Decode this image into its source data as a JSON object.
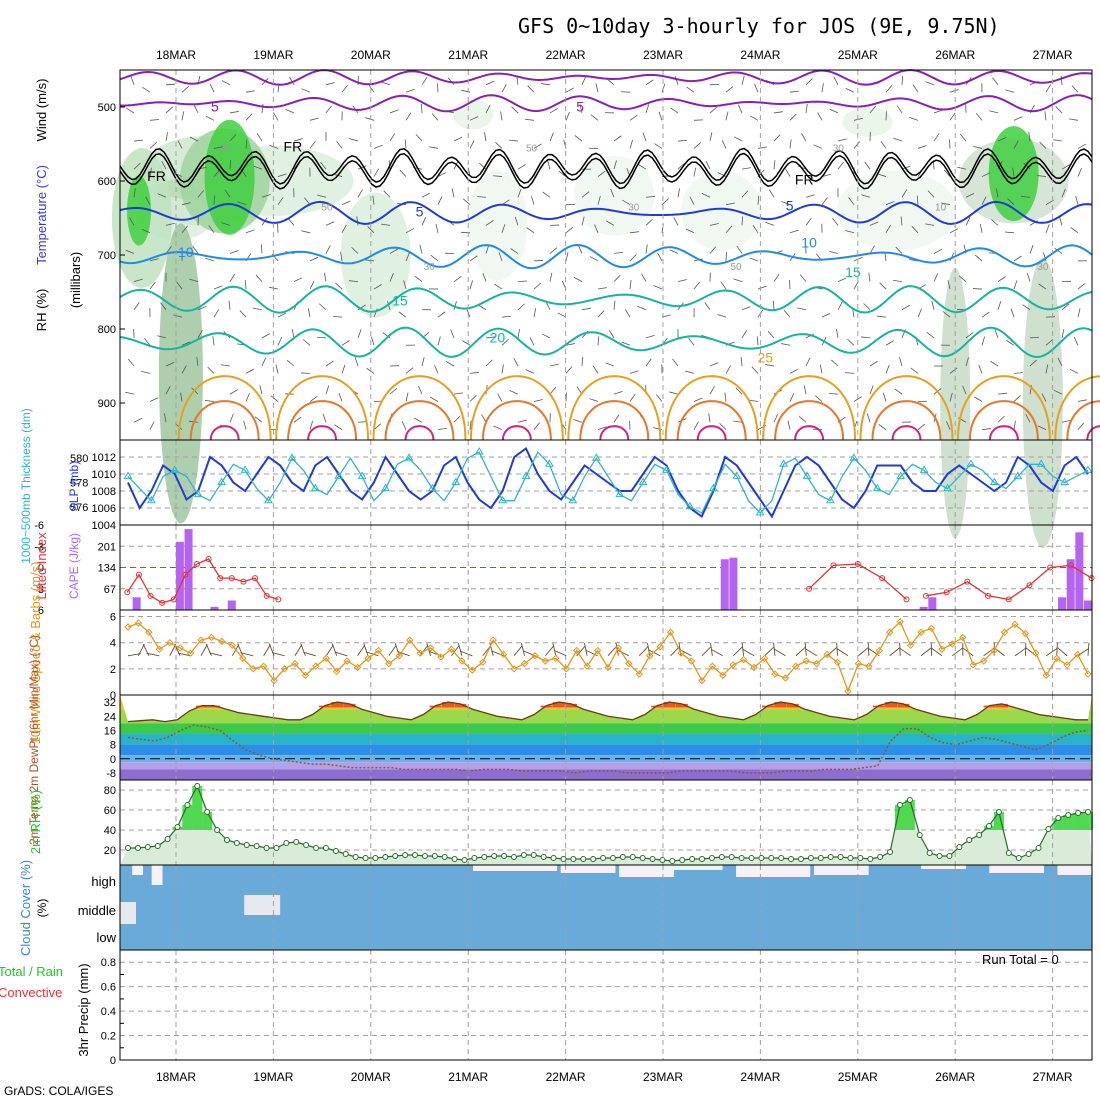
{
  "title": "GFS 0~10day 3-hourly for JOS (9E, 9.75N)",
  "credit": "GrADS: COLA/IGES",
  "run_total_label": "Run Total = 0",
  "colors": {
    "purple": "#8a1fb4",
    "black": "#000000",
    "blue": "#1e3cd2",
    "lightblue": "#1e8ce6",
    "teal": "#16b4a0",
    "orange": "#e6a020",
    "darkorange": "#e67828",
    "magenta": "#dc1e82",
    "cyan": "#32b4c8",
    "gridgray": "#a0a0a0",
    "cape": "#b464f0",
    "li": "#e63232",
    "wind": "#e6961e",
    "rh": "#22c822",
    "cloud": "#6aaad8"
  },
  "chart_data": [
    {
      "id": "upper_air",
      "type": "contour",
      "ylabel_parts": [
        "RH (%)",
        "Temperature (°C)",
        "Wind (m/s)"
      ],
      "ylabel_axis": "(millibars)",
      "yticks": [
        "500",
        "600",
        "700",
        "800",
        "900"
      ],
      "ylim": [
        950,
        450
      ],
      "x_dates": [
        "18MAR",
        "19MAR",
        "20MAR",
        "21MAR",
        "22MAR",
        "23MAR",
        "24MAR",
        "25MAR",
        "26MAR",
        "27MAR"
      ],
      "contour_labels": [
        {
          "text": "5",
          "color": "purple",
          "day": 0.4,
          "p": 506
        },
        {
          "text": "5",
          "color": "purple",
          "day": 4.15,
          "p": 506
        },
        {
          "text": "FR",
          "color": "black",
          "day": -0.2,
          "p": 600
        },
        {
          "text": "FR",
          "color": "black",
          "day": 1.2,
          "p": 560
        },
        {
          "text": "FR",
          "color": "black",
          "day": 6.45,
          "p": 605
        },
        {
          "text": "5",
          "color": "blue",
          "day": 2.5,
          "p": 648
        },
        {
          "text": "5",
          "color": "blue",
          "day": 6.3,
          "p": 640
        },
        {
          "text": "10",
          "color": "lightblue",
          "day": 0.1,
          "p": 703
        },
        {
          "text": "10",
          "color": "lightblue",
          "day": 6.5,
          "p": 690
        },
        {
          "text": "15",
          "color": "teal",
          "day": 2.3,
          "p": 768
        },
        {
          "text": "15",
          "color": "teal",
          "day": 6.95,
          "p": 730
        },
        {
          "text": "20",
          "color": "teal",
          "day": 3.3,
          "p": 818
        },
        {
          "text": "25",
          "color": "orange",
          "day": 6.05,
          "p": 845
        }
      ],
      "rh_labels": [
        "30",
        "50",
        "30",
        "50",
        "30",
        "50",
        "30",
        "10",
        "30"
      ]
    },
    {
      "id": "slp_thickness",
      "type": "line",
      "ylabel_left": "1000~500mb Thickness (dm)",
      "ylabel_right": "SLP (mb)",
      "yticks_left": [
        "580",
        "578",
        "576"
      ],
      "yticks_right": [
        "1012",
        "1010",
        "1008",
        "1006",
        "1004"
      ],
      "slp": [
        1009,
        1006,
        1008,
        1011,
        1010,
        1007,
        1008,
        1012,
        1011,
        1009,
        1008,
        1010,
        1012,
        1011,
        1009,
        1008,
        1011,
        1012,
        1010,
        1008,
        1007,
        1009,
        1012,
        1010,
        1008,
        1007,
        1008,
        1011,
        1012,
        1009,
        1007,
        1006,
        1008,
        1012,
        1013,
        1010,
        1008,
        1007,
        1009,
        1011,
        1010,
        1009,
        1008,
        1008,
        1010,
        1012,
        1011,
        1008,
        1006,
        1005,
        1008,
        1012,
        1011,
        1009,
        1007,
        1005,
        1008,
        1011,
        1012,
        1011,
        1009,
        1007,
        1006,
        1008,
        1011,
        1011,
        1011,
        1009,
        1008,
        1008,
        1010,
        1011,
        1010,
        1009,
        1008,
        1009,
        1012,
        1011,
        1009,
        1008,
        1011,
        1012,
        1010
      ],
      "thickness": [
        578.5,
        577.5,
        576.5,
        578.5,
        579,
        578.5,
        577,
        576.5,
        578,
        579.5,
        579,
        577.5,
        576.5,
        578,
        580,
        579,
        577.5,
        577,
        578.5,
        580,
        578.5,
        576.5,
        577.5,
        579.5,
        580,
        579,
        577.5,
        576.5,
        578,
        580,
        580.5,
        578.5,
        576.5,
        576.5,
        578.5,
        580.5,
        579.5,
        577,
        576.5,
        578.5,
        580,
        578.5,
        577,
        576.5,
        578,
        579.5,
        579,
        577,
        576,
        575.5,
        577.5,
        579.5,
        578.5,
        576.5,
        575.5,
        576.5,
        579.5,
        580,
        578.5,
        577,
        576.5,
        578.5,
        580,
        579,
        577.5,
        577,
        578.5,
        579.5,
        579,
        578,
        577.5,
        578.5,
        579.5,
        579,
        578,
        577.5,
        578.5,
        579.5,
        579.5,
        578.5,
        578,
        578.5,
        579
      ]
    },
    {
      "id": "cape_li",
      "type": "bar",
      "ylabel_left": "Lifted Index",
      "ylabel_right": "CAPE (J/kg)",
      "yticks_left": [
        "-6",
        "-3",
        "0",
        "3",
        "6"
      ],
      "yticks_right": [
        "201",
        "134",
        "67"
      ],
      "cape": [
        0,
        40,
        0,
        0,
        0,
        0,
        215,
        255,
        0,
        0,
        10,
        0,
        30,
        0,
        0,
        0,
        0,
        0,
        0,
        0,
        0,
        0,
        0,
        0,
        0,
        0,
        0,
        0,
        0,
        0,
        0,
        0,
        0,
        0,
        0,
        0,
        0,
        0,
        0,
        0,
        0,
        0,
        0,
        0,
        0,
        0,
        0,
        0,
        0,
        0,
        0,
        0,
        0,
        0,
        0,
        0,
        0,
        0,
        0,
        0,
        0,
        0,
        0,
        0,
        0,
        0,
        0,
        0,
        0,
        160,
        165,
        0,
        0,
        0,
        0,
        0,
        0,
        0,
        0,
        0,
        0,
        0,
        0
      ],
      "cape_tail": [
        0,
        0,
        0,
        0,
        0,
        0,
        0,
        0,
        0,
        10,
        40,
        0,
        0,
        0,
        0,
        0,
        0,
        0,
        0,
        0,
        0,
        0,
        0,
        0,
        0,
        40,
        160,
        245,
        30
      ],
      "li": [
        3.5,
        1,
        4,
        5,
        4.5,
        1,
        -0.5,
        -1.2,
        1.5,
        1.5,
        2,
        1.5,
        4,
        4.5
      ]
    },
    {
      "id": "wind10m",
      "type": "line",
      "ylabel": "10m Wind Speed & Barbs (m/s)",
      "yticks": [
        "6",
        "4",
        "2",
        "0"
      ],
      "speed": [
        5.2,
        5.5,
        4.8,
        3.5,
        4,
        3.6,
        3.2,
        4.2,
        4.4,
        4.1,
        3.8,
        2.8,
        2,
        2.2,
        1.1,
        2,
        2.4,
        1.5,
        2.2,
        2.8,
        1.8,
        2.6,
        2.1,
        2.8,
        3.4,
        2.4,
        3,
        4.2,
        3.2,
        3.6,
        2.9,
        3.5,
        2.6,
        1.9,
        2.5,
        4.2,
        3.1,
        2,
        2.4,
        3,
        2.6,
        2.8,
        2,
        3.4,
        2.2,
        3.4,
        2.1,
        3.6,
        2.4,
        1.6,
        3,
        3.7,
        4.8,
        3.2,
        2.6,
        1.1,
        2.2,
        1.5,
        2.3,
        2.7,
        2.1,
        2.8,
        1.6,
        1.3,
        2.2,
        2.6,
        2.4,
        3.1,
        2.5,
        0.3,
        2.4,
        2.2,
        3.4,
        4.8,
        5.6,
        3.8,
        4.8,
        5.1,
        3.5,
        3.9,
        4.4,
        2.3,
        2.6,
        3.4,
        4.8,
        5.4,
        4.7,
        3.2,
        1.5,
        2.8,
        2.3,
        3.1,
        1.6
      ]
    },
    {
      "id": "temp2m",
      "type": "area",
      "ylabel": "2m Temp 2m DewPt (6hr Min/Max) (°C)",
      "yticks": [
        "32",
        "24",
        "16",
        "8",
        "0",
        "-8"
      ],
      "temp": [
        21,
        21.5,
        22,
        21,
        22,
        27,
        30,
        30,
        28,
        26,
        25,
        24,
        23,
        22,
        22,
        25,
        30,
        32,
        31,
        28,
        26,
        24,
        23,
        22,
        25,
        30,
        32,
        31,
        28,
        26,
        24,
        23,
        22,
        25,
        30,
        32,
        31,
        28,
        26,
        24,
        23,
        22,
        25,
        30,
        32,
        31,
        28,
        26,
        24,
        23,
        22,
        25,
        30,
        32,
        31,
        28,
        26,
        24,
        23,
        22,
        25,
        30,
        32,
        31,
        28,
        26,
        24,
        23,
        22,
        25,
        30,
        31,
        29,
        27,
        25,
        24,
        23,
        22,
        22
      ],
      "dew": [
        12,
        11,
        10,
        12,
        16,
        19,
        18,
        16,
        10,
        5,
        2,
        0,
        -1,
        -2,
        -3,
        -3,
        -4,
        -5,
        -5,
        -5,
        -5,
        -6,
        -6,
        -6,
        -6,
        -6,
        -7,
        -6,
        -6,
        -6,
        -7,
        -7,
        -7,
        -7,
        -8,
        -7,
        -7,
        -7,
        -8,
        -8,
        -8,
        -8,
        -7,
        -7,
        -7,
        -7,
        -7,
        -8,
        -8,
        -8,
        -7,
        -7,
        -7,
        -6,
        -6,
        -6,
        -5,
        -4,
        10,
        17,
        17,
        12,
        9,
        8,
        10,
        12,
        11,
        9,
        7,
        5,
        8,
        12,
        15,
        16
      ]
    },
    {
      "id": "rh2m",
      "type": "area",
      "ylabel": "2m RH (%)",
      "yticks": [
        "80",
        "60",
        "40",
        "20"
      ],
      "values": [
        22,
        22,
        23,
        24,
        31,
        43,
        65,
        84,
        58,
        40,
        30,
        27,
        25,
        24,
        22,
        22,
        27,
        28,
        25,
        22,
        22,
        19,
        16,
        13,
        12,
        12,
        13,
        14,
        15,
        15,
        14,
        14,
        13,
        11,
        10,
        12,
        13,
        14,
        14,
        13,
        15,
        15,
        13,
        12,
        11,
        11,
        11,
        11,
        12,
        12,
        13,
        13,
        12,
        11,
        10,
        9,
        10,
        11,
        11,
        12,
        13,
        13,
        12,
        12,
        12,
        12,
        12,
        11,
        11,
        12,
        12,
        13,
        13,
        12,
        12,
        11,
        13,
        18,
        65,
        70,
        35,
        17,
        14,
        14,
        23,
        30,
        35,
        44,
        58,
        17,
        12,
        16,
        22,
        41,
        52,
        55,
        57,
        58
      ]
    },
    {
      "id": "cloud",
      "type": "heatmap",
      "ylabel": "Cloud Cover (%)",
      "levels": [
        "high",
        "middle",
        "low"
      ]
    },
    {
      "id": "precip",
      "type": "bar",
      "ylabel_left": "Total / Rain",
      "ylabel_left2": "Convective",
      "ylabel": "3hr Precip (mm)",
      "yticks": [
        "0.8",
        "0.6",
        "0.4",
        "0.2",
        "0"
      ],
      "values": []
    }
  ]
}
